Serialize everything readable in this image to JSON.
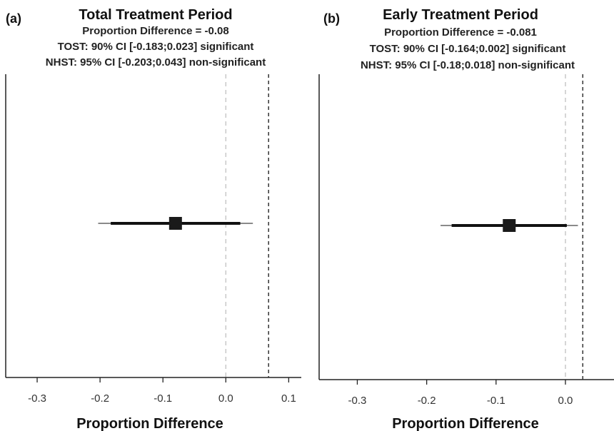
{
  "chart_data": [
    {
      "type": "forest",
      "panel_label": "(a)",
      "title": "Total Treatment Period",
      "subtitle_lines": [
        "Proportion Difference = -0.08",
        "TOST: 90% CI [-0.183;0.023] significant",
        "NHST: 95% CI [-0.203;0.043] non-significant"
      ],
      "xlabel": "Proportion Difference",
      "xlim": [
        -0.35,
        0.12
      ],
      "xticks": [
        -0.3,
        -0.2,
        -0.1,
        0.0,
        0.1
      ],
      "xtick_labels": [
        "-0.3",
        "-0.2",
        "-0.1",
        "0.0",
        "0.1"
      ],
      "estimate": -0.08,
      "ci90": [
        -0.183,
        0.023
      ],
      "ci95": [
        -0.203,
        0.043
      ],
      "reference_line": 0.0,
      "equivalence_bound": 0.068
    },
    {
      "type": "forest",
      "panel_label": "(b)",
      "title": "Early Treatment Period",
      "subtitle_lines": [
        "Proportion Difference = -0.081",
        "TOST: 90% CI [-0.164;0.002] significant",
        "NHST: 95% CI [-0.18;0.018] non-significant"
      ],
      "xlabel": "Proportion Difference",
      "xlim": [
        -0.355,
        0.07
      ],
      "xticks": [
        -0.3,
        -0.2,
        -0.1,
        0.0
      ],
      "xtick_labels": [
        "-0.3",
        "-0.2",
        "-0.1",
        "0.0"
      ],
      "estimate": -0.081,
      "ci90": [
        -0.164,
        0.002
      ],
      "ci95": [
        -0.18,
        0.018
      ],
      "reference_line": 0.0,
      "equivalence_bound": 0.025
    }
  ]
}
